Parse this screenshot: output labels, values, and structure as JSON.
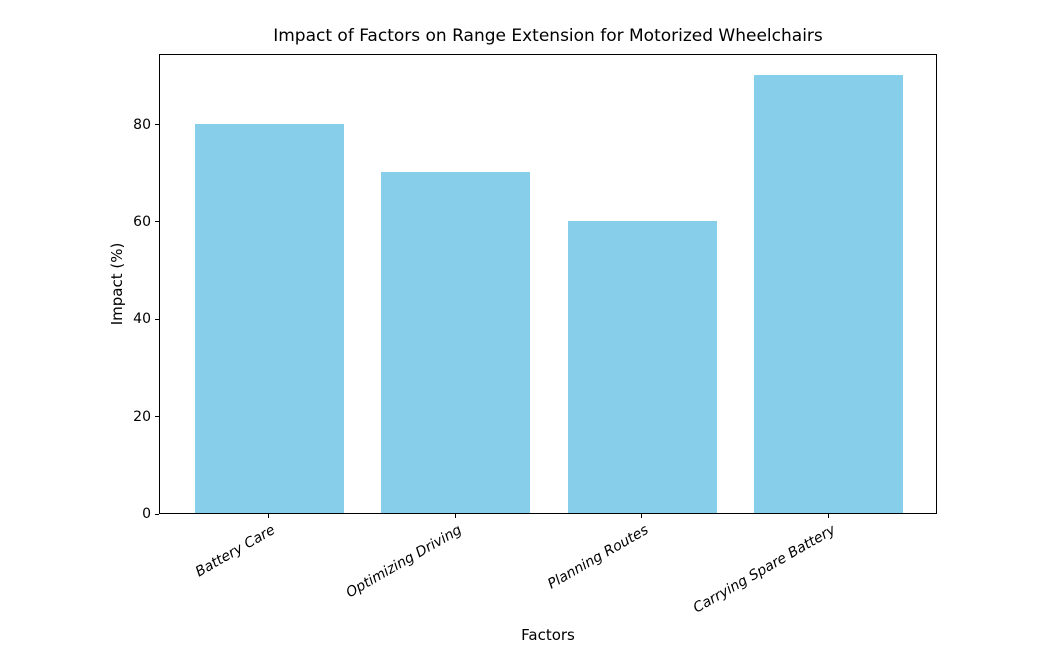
{
  "chart_data": {
    "type": "bar",
    "title": "Impact of Factors on Range Extension for Motorized Wheelchairs",
    "categories": [
      "Battery Care",
      "Optimizing Driving",
      "Planning Routes",
      "Carrying Spare Battery"
    ],
    "values": [
      80,
      70,
      60,
      90
    ],
    "xlabel": "Factors",
    "ylabel": "Impact (%)",
    "ylim": [
      0,
      94.5
    ],
    "yticks": [
      0,
      20,
      40,
      60,
      80
    ],
    "bar_color": "#87CEEB",
    "bar_width_frac": 0.8,
    "grid": false,
    "legend": "none",
    "tick_label_style": "italic-rotated-30"
  }
}
